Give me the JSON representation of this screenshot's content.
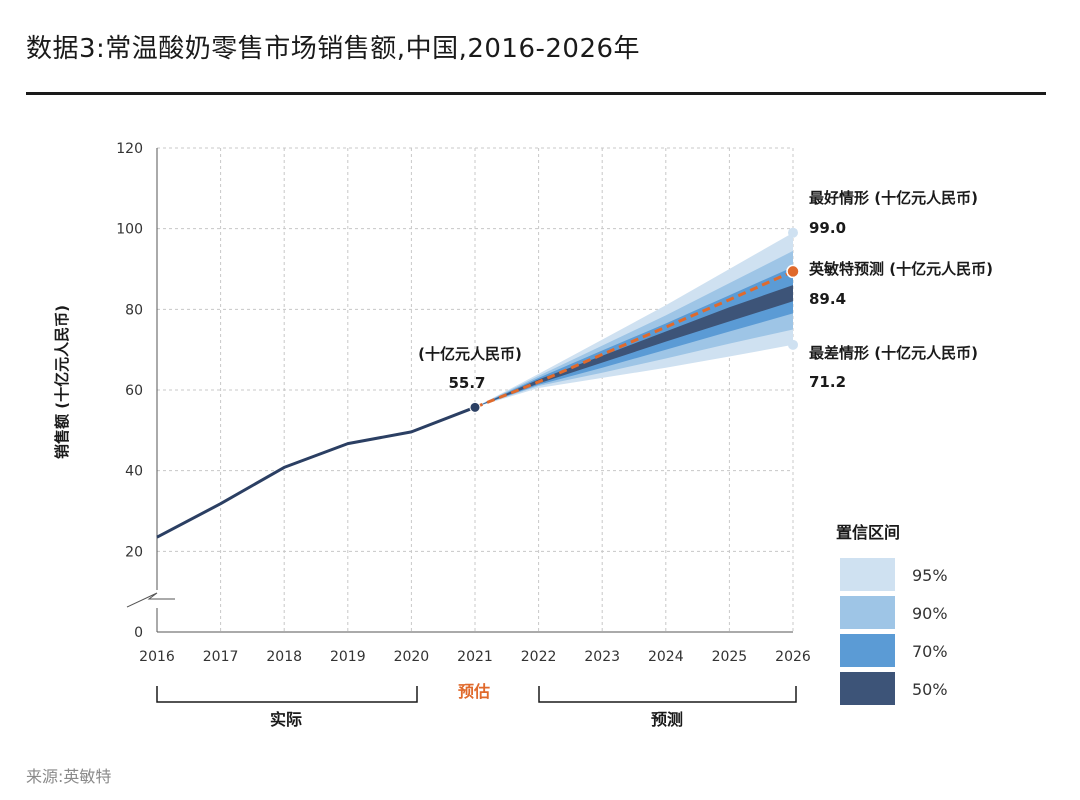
{
  "title": "数据3:常温酸奶零售市场销售额,中国,2016-2026年",
  "source": "来源:英敏特",
  "chart_data": {
    "type": "line",
    "x": [
      2016,
      2017,
      2018,
      2019,
      2020,
      2021,
      2022,
      2023,
      2024,
      2025,
      2026
    ],
    "actual": {
      "x": [
        2016,
        2017,
        2018,
        2019,
        2020,
        2021
      ],
      "values": [
        23.5,
        31.8,
        40.8,
        46.7,
        49.6,
        55.7
      ]
    },
    "forecast": {
      "x": [
        2021,
        2022,
        2023,
        2024,
        2025,
        2026
      ],
      "values": [
        55.7,
        62.0,
        68.8,
        75.6,
        82.4,
        89.4
      ]
    },
    "confidence_bands": [
      {
        "level": "95%",
        "color": "#cfe1f1",
        "lower": [
          55.7,
          60.5,
          63.0,
          65.5,
          68.3,
          71.2
        ],
        "upper": [
          55.7,
          64.0,
          72.5,
          81.0,
          90.0,
          99.0
        ]
      },
      {
        "level": "90%",
        "color": "#9ec5e6",
        "lower": [
          55.7,
          61.0,
          64.3,
          67.8,
          71.5,
          75.0
        ],
        "upper": [
          55.7,
          63.5,
          71.0,
          78.5,
          86.5,
          94.5
        ]
      },
      {
        "level": "70%",
        "color": "#5b9bd5",
        "lower": [
          55.7,
          61.3,
          65.5,
          70.0,
          74.5,
          79.0
        ],
        "upper": [
          55.7,
          63.0,
          69.8,
          76.5,
          83.5,
          90.5
        ]
      },
      {
        "level": "50%",
        "color": "#3d5478",
        "lower": [
          55.7,
          61.6,
          66.8,
          72.0,
          77.0,
          82.0
        ],
        "upper": [
          55.7,
          62.6,
          68.5,
          74.5,
          80.5,
          86.0
        ]
      }
    ],
    "ylabel": "销售额 (十亿元人民币)",
    "ylim": [
      0,
      120
    ],
    "yticks": [
      0,
      20,
      40,
      60,
      80,
      100,
      120
    ],
    "xtick_labels": [
      "2016",
      "2017",
      "2018",
      "2019",
      "2020",
      "2021",
      "2022",
      "2023",
      "2024",
      "2025",
      "2026"
    ],
    "annotations": {
      "point_2021": {
        "label": "(十亿元人民币)",
        "value": "55.7"
      },
      "best": {
        "label": "最好情形 (十亿元人民币)",
        "value": "99.0"
      },
      "mintel": {
        "label": "英敏特预测 (十亿元人民币)",
        "value": "89.4"
      },
      "worst": {
        "label": "最差情形 (十亿元人民币)",
        "value": "71.2"
      }
    },
    "periods": {
      "actual": "实际",
      "estimate": "预估",
      "forecast": "预测"
    },
    "legend": {
      "title": "置信区间",
      "items": [
        {
          "label": "95%",
          "color": "#cfe1f1"
        },
        {
          "label": "90%",
          "color": "#9ec5e6"
        },
        {
          "label": "70%",
          "color": "#5b9bd5"
        },
        {
          "label": "50%",
          "color": "#3d5478"
        }
      ]
    },
    "colors": {
      "actual_line": "#2b3f63",
      "forecast_line": "#e06a2c",
      "grid": "#c8c8c8"
    }
  }
}
